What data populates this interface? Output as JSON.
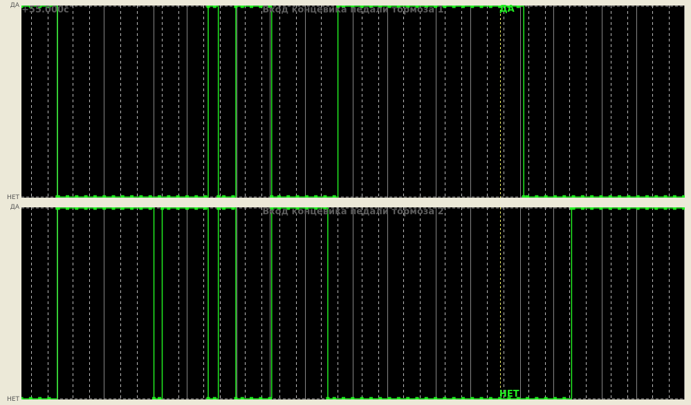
{
  "levels": {
    "high": "ДА",
    "low": "НЕТ"
  },
  "cursor": {
    "time_label": "+55.000с",
    "position_samples": 52.0,
    "color": "#ffff66"
  },
  "signal_color": "#22ee22",
  "x_range_samples": [
    0,
    72.1
  ],
  "channels": [
    {
      "title": "Вход концевика педали тормоза 1",
      "cursor_value": "ДА",
      "initial_state": 1,
      "edges_samples": [
        3.9,
        20.3,
        21.4,
        23.3,
        27.2,
        34.4,
        54.6
      ]
    },
    {
      "title": "Вход концевика педали тормоза 2",
      "cursor_value": "НЕТ",
      "initial_state": 0,
      "edges_samples": [
        3.9,
        14.4,
        15.3,
        20.3,
        21.4,
        23.3,
        27.2,
        33.3,
        59.8
      ]
    }
  ]
}
